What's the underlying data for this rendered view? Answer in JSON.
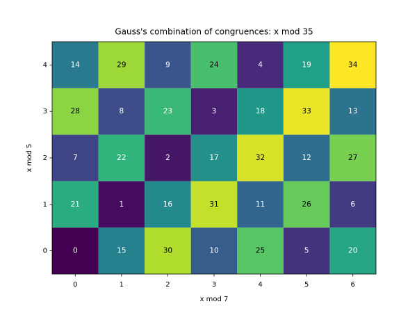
{
  "chart_data": {
    "type": "heatmap",
    "title": "Gauss's combination of congruences: x mod 35",
    "x_label": "x mod 7",
    "y_label": "x mod 5",
    "xlim": [
      -0.5,
      6.5
    ],
    "ylim": [
      -0.5,
      4.5
    ],
    "xticks": [
      0,
      1,
      2,
      3,
      4,
      5,
      6
    ],
    "yticks": [
      0,
      1,
      2,
      3,
      4
    ],
    "colormap": "viridis",
    "clim": [
      0,
      34
    ],
    "values": [
      [
        0,
        15,
        30,
        10,
        25,
        5,
        20
      ],
      [
        21,
        1,
        16,
        31,
        11,
        26,
        6
      ],
      [
        7,
        22,
        2,
        17,
        32,
        12,
        27
      ],
      [
        28,
        8,
        23,
        3,
        18,
        33,
        13
      ],
      [
        14,
        29,
        9,
        24,
        4,
        19,
        34
      ]
    ]
  }
}
